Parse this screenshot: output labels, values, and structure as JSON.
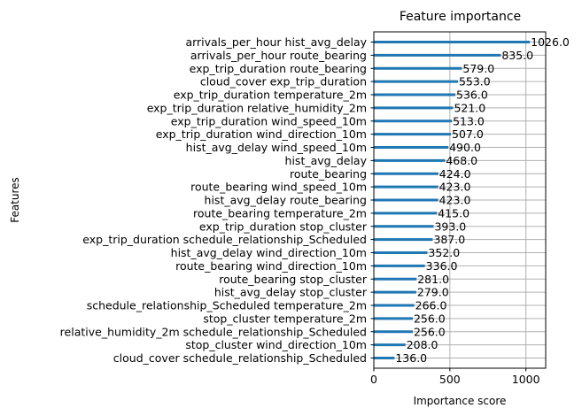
{
  "chart_data": {
    "type": "bar",
    "orientation": "horizontal",
    "title": "Feature importance",
    "xlabel": "Importance score",
    "ylabel": "Features",
    "xlim": [
      0,
      1130
    ],
    "xticks": [
      0,
      500,
      1000
    ],
    "grid": true,
    "bar_color": "#1f77b4",
    "grid_color": "#b0b0b0",
    "categories": [
      "arrivals_per_hour hist_avg_delay",
      "arrivals_per_hour route_bearing",
      "exp_trip_duration route_bearing",
      "cloud_cover exp_trip_duration",
      "exp_trip_duration temperature_2m",
      "exp_trip_duration relative_humidity_2m",
      "exp_trip_duration wind_speed_10m",
      "exp_trip_duration wind_direction_10m",
      "hist_avg_delay wind_speed_10m",
      "hist_avg_delay",
      "route_bearing",
      "route_bearing wind_speed_10m",
      "hist_avg_delay route_bearing",
      "route_bearing temperature_2m",
      "exp_trip_duration stop_cluster",
      "exp_trip_duration schedule_relationship_Scheduled",
      "hist_avg_delay wind_direction_10m",
      "route_bearing wind_direction_10m",
      "route_bearing stop_cluster",
      "hist_avg_delay stop_cluster",
      "schedule_relationship_Scheduled temperature_2m",
      "stop_cluster temperature_2m",
      "relative_humidity_2m schedule_relationship_Scheduled",
      "stop_cluster wind_direction_10m",
      "cloud_cover schedule_relationship_Scheduled"
    ],
    "values": [
      1026.0,
      835.0,
      579.0,
      553.0,
      536.0,
      521.0,
      513.0,
      507.0,
      490.0,
      468.0,
      424.0,
      423.0,
      423.0,
      415.0,
      393.0,
      387.0,
      352.0,
      336.0,
      281.0,
      279.0,
      266.0,
      256.0,
      256.0,
      208.0,
      136.0
    ],
    "value_labels": [
      "1026.0",
      "835.0",
      "579.0",
      "553.0",
      "536.0",
      "521.0",
      "513.0",
      "507.0",
      "490.0",
      "468.0",
      "424.0",
      "423.0",
      "423.0",
      "415.0",
      "393.0",
      "387.0",
      "352.0",
      "336.0",
      "281.0",
      "279.0",
      "266.0",
      "256.0",
      "256.0",
      "208.0",
      "136.0"
    ]
  }
}
